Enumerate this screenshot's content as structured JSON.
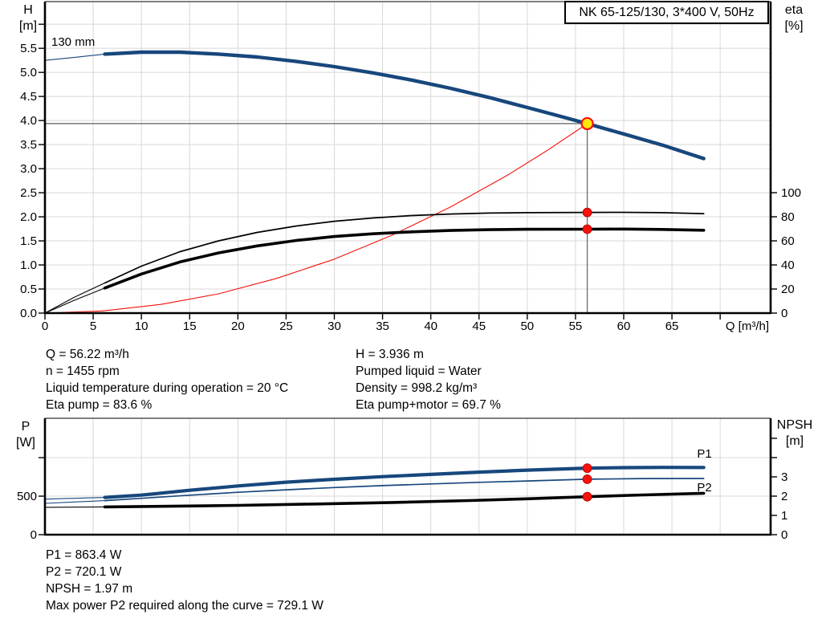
{
  "title_box": "NK 65-125/130, 3*400 V, 50Hz",
  "info_top_left": [
    "Q = 56.22 m³/h",
    "n = 1455 rpm",
    "Liquid temperature during operation = 20 °C",
    "Eta pump = 83.6 %"
  ],
  "info_top_right": [
    "H = 3.936 m",
    "Pumped liquid = Water",
    "Density = 998.2 kg/m³",
    "Eta pump+motor = 69.7 %"
  ],
  "info_bottom": [
    "P1 = 863.4 W",
    "P2 = 720.1 W",
    "NPSH = 1.97 m",
    "Max power P2 required along the curve = 729.1 W"
  ],
  "colors": {
    "curve_blue": "#17477C",
    "curve_black": "#000000",
    "system_red": "#F4120B",
    "duty_yellow": "#FFE70A",
    "marker_red": "#F4120B",
    "marker_red_edge": "#B30000",
    "grid": "#D8D8D8",
    "crosshair": "#6B6B6B"
  },
  "chart_data": [
    {
      "type": "line",
      "name": "qh-eta-chart",
      "title": "NK 65-125/130, 3*400 V, 50Hz",
      "impeller_label": "130 mm",
      "x_axis": {
        "label": "Q [m³/h]",
        "range": [
          0,
          75.23
        ],
        "ticks": [
          0,
          5,
          10,
          15,
          20,
          25,
          30,
          35,
          40,
          45,
          50,
          55,
          60,
          65,
          70
        ],
        "tick_labels": [
          "0",
          "5",
          "10",
          "15",
          "20",
          "25",
          "30",
          "35",
          "40",
          "45",
          "50",
          "55",
          "60",
          "65",
          ""
        ],
        "grid": [
          5,
          10,
          15,
          20,
          25,
          30,
          35,
          40,
          45,
          50,
          55,
          60,
          65,
          70
        ]
      },
      "y_left": {
        "label_lines": [
          "H",
          "[m]"
        ],
        "unit": "m",
        "range": [
          0,
          6.47
        ],
        "ticks": [
          0,
          0.5,
          1,
          1.5,
          2,
          2.5,
          3,
          3.5,
          4,
          4.5,
          5,
          5.5,
          6
        ],
        "tick_labels": [
          "0.0",
          "0.5",
          "1.0",
          "1.5",
          "2.0",
          "2.5",
          "3.0",
          "3.5",
          "4.0",
          "4.5",
          "5.0",
          "5.5",
          ""
        ],
        "grid": [
          0.5,
          1,
          1.5,
          2,
          2.5,
          3,
          3.5,
          4,
          4.5,
          5,
          5.5,
          6
        ]
      },
      "y_right": {
        "label_lines": [
          "eta",
          "[%]"
        ],
        "unit": "%",
        "range": [
          0,
          258.7
        ],
        "ticks": [
          0,
          20,
          40,
          60,
          80,
          100
        ],
        "tick_labels": [
          "0",
          "20",
          "40",
          "60",
          "80",
          "100"
        ]
      },
      "duty_point": {
        "q": 56.22,
        "h": 3.936,
        "crosshair": true
      },
      "series": [
        {
          "name": "system-curve",
          "axis": "y_left",
          "color": "red",
          "width": 1.1,
          "points": [
            [
              0,
              0
            ],
            [
              6,
              0.045
            ],
            [
              12,
              0.18
            ],
            [
              18,
              0.4
            ],
            [
              24,
              0.72
            ],
            [
              30,
              1.12
            ],
            [
              36,
              1.62
            ],
            [
              42,
              2.2
            ],
            [
              48,
              2.87
            ],
            [
              52,
              3.37
            ],
            [
              56.22,
              3.936
            ]
          ]
        },
        {
          "name": "eta-pump-curve-thin",
          "axis": "y_right",
          "color": "black",
          "width": 1.1,
          "points": [
            [
              0,
              0
            ],
            [
              3,
              13
            ],
            [
              6.2,
              25
            ]
          ]
        },
        {
          "name": "eta-pump-curve",
          "axis": "y_right",
          "color": "black",
          "width": 1.7,
          "points": [
            [
              6.2,
              25
            ],
            [
              10,
              39
            ],
            [
              14,
              51
            ],
            [
              18,
              60
            ],
            [
              22,
              67
            ],
            [
              26,
              72.3
            ],
            [
              30,
              76.3
            ],
            [
              34,
              79
            ],
            [
              38,
              81
            ],
            [
              42,
              82.3
            ],
            [
              46,
              83.1
            ],
            [
              50,
              83.4
            ],
            [
              56.22,
              83.6
            ],
            [
              60,
              83.7
            ],
            [
              64,
              83.4
            ],
            [
              68.3,
              82.6
            ]
          ]
        },
        {
          "name": "eta-pump-motor-curve-thin",
          "axis": "y_right",
          "color": "black",
          "width": 1.1,
          "points": [
            [
              0,
              0
            ],
            [
              3,
              10.5
            ],
            [
              6.2,
              20.8
            ]
          ]
        },
        {
          "name": "eta-pump-motor-curve",
          "axis": "y_right",
          "color": "black",
          "width": 3.6,
          "points": [
            [
              6.2,
              20.8
            ],
            [
              10,
              32.5
            ],
            [
              14,
              42.5
            ],
            [
              18,
              50
            ],
            [
              22,
              55.8
            ],
            [
              26,
              60.3
            ],
            [
              30,
              63.6
            ],
            [
              34,
              65.9
            ],
            [
              38,
              67.5
            ],
            [
              42,
              68.6
            ],
            [
              46,
              69.3
            ],
            [
              50,
              69.6
            ],
            [
              56.22,
              69.7
            ],
            [
              60,
              69.8
            ],
            [
              64,
              69.5
            ],
            [
              68.3,
              68.8
            ]
          ]
        },
        {
          "name": "head-curve-thin",
          "axis": "y_left",
          "color": "blue",
          "width": 1.1,
          "points": [
            [
              0,
              5.25
            ],
            [
              3,
              5.31
            ],
            [
              6.2,
              5.38
            ]
          ]
        },
        {
          "name": "head-curve-130mm",
          "axis": "y_left",
          "color": "blue",
          "width": 4.4,
          "points": [
            [
              6.2,
              5.38
            ],
            [
              10,
              5.42
            ],
            [
              14,
              5.42
            ],
            [
              18,
              5.38
            ],
            [
              22,
              5.32
            ],
            [
              26,
              5.23
            ],
            [
              30,
              5.12
            ],
            [
              34,
              4.99
            ],
            [
              38,
              4.84
            ],
            [
              42,
              4.67
            ],
            [
              46,
              4.48
            ],
            [
              50,
              4.27
            ],
            [
              53,
              4.11
            ],
            [
              56.22,
              3.936
            ],
            [
              60,
              3.72
            ],
            [
              64,
              3.49
            ],
            [
              68.3,
              3.21
            ]
          ]
        }
      ],
      "markers": [
        {
          "name": "duty-point-marker",
          "axis": "y_left",
          "q": 56.22,
          "v": 3.936,
          "style": "duty"
        },
        {
          "name": "eta-pump-duty-marker",
          "axis": "y_right",
          "q": 56.22,
          "v": 83.6,
          "style": "dot"
        },
        {
          "name": "eta-pump-motor-duty-marker",
          "axis": "y_right",
          "q": 56.22,
          "v": 69.7,
          "style": "dot"
        }
      ]
    },
    {
      "type": "line",
      "name": "power-npsh-chart",
      "x_axis": {
        "label": "",
        "range": [
          0,
          75.23
        ],
        "ticks": [],
        "tick_labels": [],
        "grid": [
          5,
          10,
          15,
          20,
          25,
          30,
          35,
          40,
          45,
          50,
          55,
          60,
          65,
          70
        ]
      },
      "y_left": {
        "label_lines": [
          "P",
          "[W]"
        ],
        "unit": "W",
        "range": [
          0,
          1511
        ],
        "ticks": [
          0,
          500,
          1000
        ],
        "tick_labels": [
          "0",
          "500",
          ""
        ],
        "grid": [
          500,
          1000
        ]
      },
      "y_right": {
        "label_lines": [
          "NPSH",
          "[m]"
        ],
        "unit": "m",
        "range": [
          0,
          6.04
        ],
        "ticks": [
          0,
          1,
          2,
          3,
          4,
          5
        ],
        "tick_labels": [
          "0",
          "1",
          "2",
          "3",
          "",
          ""
        ]
      },
      "series": [
        {
          "name": "p2-curve-thin",
          "axis": "y_left",
          "color": "blue",
          "width": 1.1,
          "points": [
            [
              0,
              406
            ],
            [
              3,
              424
            ],
            [
              6.2,
              442
            ]
          ]
        },
        {
          "name": "p2-curve",
          "axis": "y_left",
          "color": "blue",
          "width": 1.7,
          "points": [
            [
              6.2,
              442
            ],
            [
              10,
              472
            ],
            [
              15,
              513
            ],
            [
              20,
              550
            ],
            [
              25,
              583
            ],
            [
              30,
              612
            ],
            [
              35,
              637
            ],
            [
              40,
              659
            ],
            [
              45,
              679
            ],
            [
              50,
              697
            ],
            [
              56.22,
              720.1
            ],
            [
              62,
              728
            ],
            [
              68.3,
              729
            ]
          ]
        },
        {
          "name": "npsh-curve-thin",
          "axis": "y_right",
          "color": "black",
          "width": 1.1,
          "points": [
            [
              0,
              1.42
            ],
            [
              6.2,
              1.44
            ]
          ]
        },
        {
          "name": "npsh-curve",
          "axis": "y_right",
          "color": "black",
          "width": 3.6,
          "points": [
            [
              6.2,
              1.44
            ],
            [
              12,
              1.47
            ],
            [
              20,
              1.52
            ],
            [
              28,
              1.59
            ],
            [
              36,
              1.67
            ],
            [
              44,
              1.77
            ],
            [
              50,
              1.86
            ],
            [
              56.22,
              1.97
            ],
            [
              62,
              2.06
            ],
            [
              68.3,
              2.15
            ]
          ]
        },
        {
          "name": "p1-curve-thin",
          "axis": "y_left",
          "color": "blue",
          "width": 1.1,
          "points": [
            [
              0,
              462
            ],
            [
              3,
              472
            ],
            [
              6.2,
              484
            ]
          ]
        },
        {
          "name": "p1-curve",
          "axis": "y_left",
          "color": "blue",
          "width": 4.2,
          "points": [
            [
              6.2,
              484
            ],
            [
              10,
              514
            ],
            [
              15,
              576
            ],
            [
              20,
              633
            ],
            [
              25,
              681
            ],
            [
              30,
              719
            ],
            [
              35,
              753
            ],
            [
              40,
              783
            ],
            [
              45,
              812
            ],
            [
              50,
              838
            ],
            [
              56.22,
              863.4
            ],
            [
              60,
              870
            ],
            [
              64,
              873
            ],
            [
              68.3,
              872
            ]
          ]
        }
      ],
      "curve_labels": [
        {
          "text": "P1",
          "q": 67.6,
          "v": 1050,
          "axis": "y_left"
        },
        {
          "text": "P2",
          "q": 67.6,
          "v": 615,
          "axis": "y_left"
        }
      ],
      "markers": [
        {
          "name": "p1-duty-marker",
          "axis": "y_left",
          "q": 56.22,
          "v": 863.4,
          "style": "dot"
        },
        {
          "name": "p2-duty-marker",
          "axis": "y_left",
          "q": 56.22,
          "v": 720.1,
          "style": "dot"
        },
        {
          "name": "npsh-duty-marker",
          "axis": "y_right",
          "q": 56.22,
          "v": 1.97,
          "style": "dot"
        }
      ]
    }
  ]
}
